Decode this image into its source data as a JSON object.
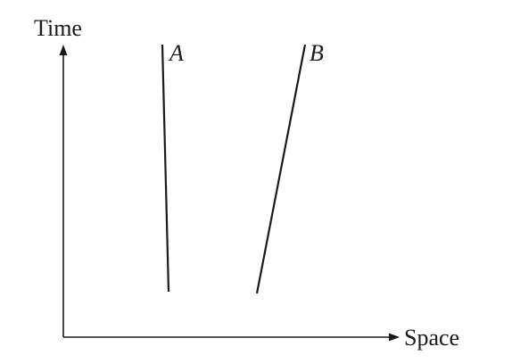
{
  "diagram": {
    "y_axis_label": "Time",
    "x_axis_label": "Space",
    "worldlines": [
      {
        "label": "A"
      },
      {
        "label": "B"
      }
    ]
  }
}
